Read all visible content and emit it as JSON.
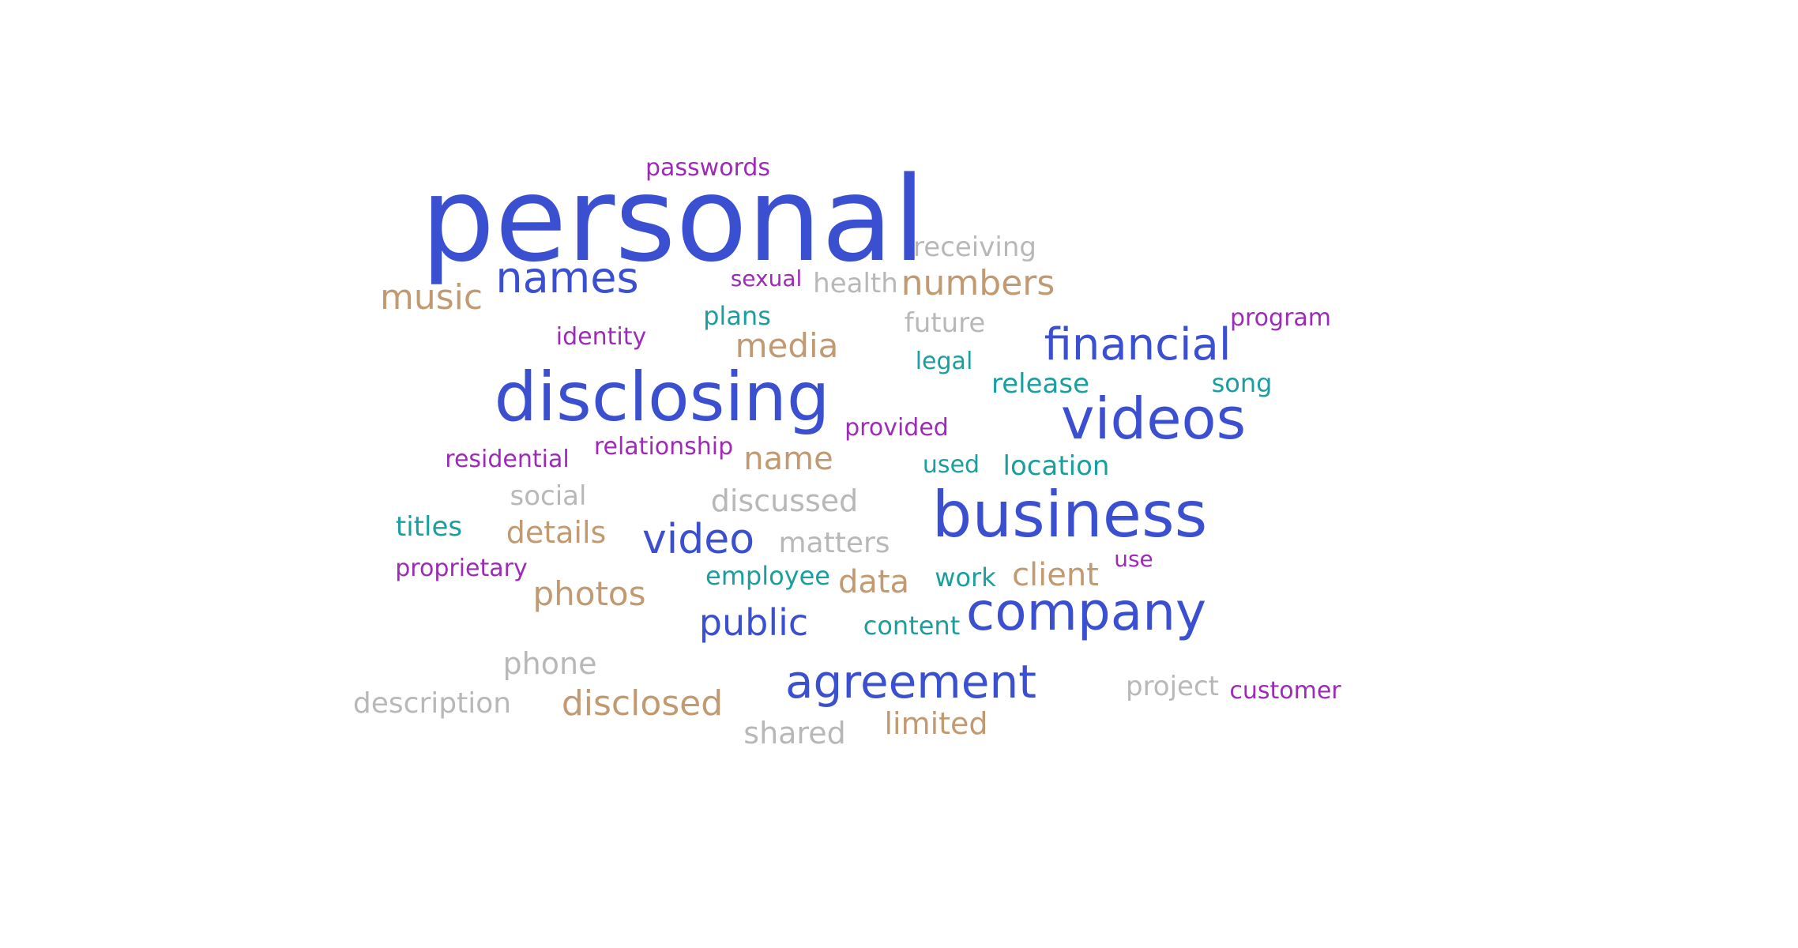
{
  "palette": {
    "blue": "#3a50d0",
    "tan": "#c29a72",
    "purple": "#9e2ab8",
    "teal": "#1b9e9e",
    "gray": "#b8b8b8"
  },
  "words": [
    {
      "text": "personal",
      "color": "blue"
    },
    {
      "text": "disclosing",
      "color": "blue"
    },
    {
      "text": "business",
      "color": "blue"
    },
    {
      "text": "videos",
      "color": "blue"
    },
    {
      "text": "company",
      "color": "blue"
    },
    {
      "text": "agreement",
      "color": "blue"
    },
    {
      "text": "names",
      "color": "blue"
    },
    {
      "text": "financial",
      "color": "blue"
    },
    {
      "text": "video",
      "color": "blue"
    },
    {
      "text": "public",
      "color": "blue"
    },
    {
      "text": "music",
      "color": "tan"
    },
    {
      "text": "numbers",
      "color": "tan"
    },
    {
      "text": "media",
      "color": "tan"
    },
    {
      "text": "name",
      "color": "tan"
    },
    {
      "text": "details",
      "color": "tan"
    },
    {
      "text": "photos",
      "color": "tan"
    },
    {
      "text": "data",
      "color": "tan"
    },
    {
      "text": "client",
      "color": "tan"
    },
    {
      "text": "disclosed",
      "color": "tan"
    },
    {
      "text": "limited",
      "color": "tan"
    },
    {
      "text": "passwords",
      "color": "purple"
    },
    {
      "text": "sexual",
      "color": "purple"
    },
    {
      "text": "identity",
      "color": "purple"
    },
    {
      "text": "program",
      "color": "purple"
    },
    {
      "text": "provided",
      "color": "purple"
    },
    {
      "text": "residential",
      "color": "purple"
    },
    {
      "text": "relationship",
      "color": "purple"
    },
    {
      "text": "proprietary",
      "color": "purple"
    },
    {
      "text": "use",
      "color": "purple"
    },
    {
      "text": "customer",
      "color": "purple"
    },
    {
      "text": "plans",
      "color": "teal"
    },
    {
      "text": "legal",
      "color": "teal"
    },
    {
      "text": "release",
      "color": "teal"
    },
    {
      "text": "song",
      "color": "teal"
    },
    {
      "text": "used",
      "color": "teal"
    },
    {
      "text": "location",
      "color": "teal"
    },
    {
      "text": "titles",
      "color": "teal"
    },
    {
      "text": "employee",
      "color": "teal"
    },
    {
      "text": "work",
      "color": "teal"
    },
    {
      "text": "content",
      "color": "teal"
    },
    {
      "text": "receiving",
      "color": "gray"
    },
    {
      "text": "health",
      "color": "gray"
    },
    {
      "text": "future",
      "color": "gray"
    },
    {
      "text": "social",
      "color": "gray"
    },
    {
      "text": "discussed",
      "color": "gray"
    },
    {
      "text": "matters",
      "color": "gray"
    },
    {
      "text": "phone",
      "color": "gray"
    },
    {
      "text": "description",
      "color": "gray"
    },
    {
      "text": "shared",
      "color": "gray"
    },
    {
      "text": "project",
      "color": "gray"
    }
  ]
}
